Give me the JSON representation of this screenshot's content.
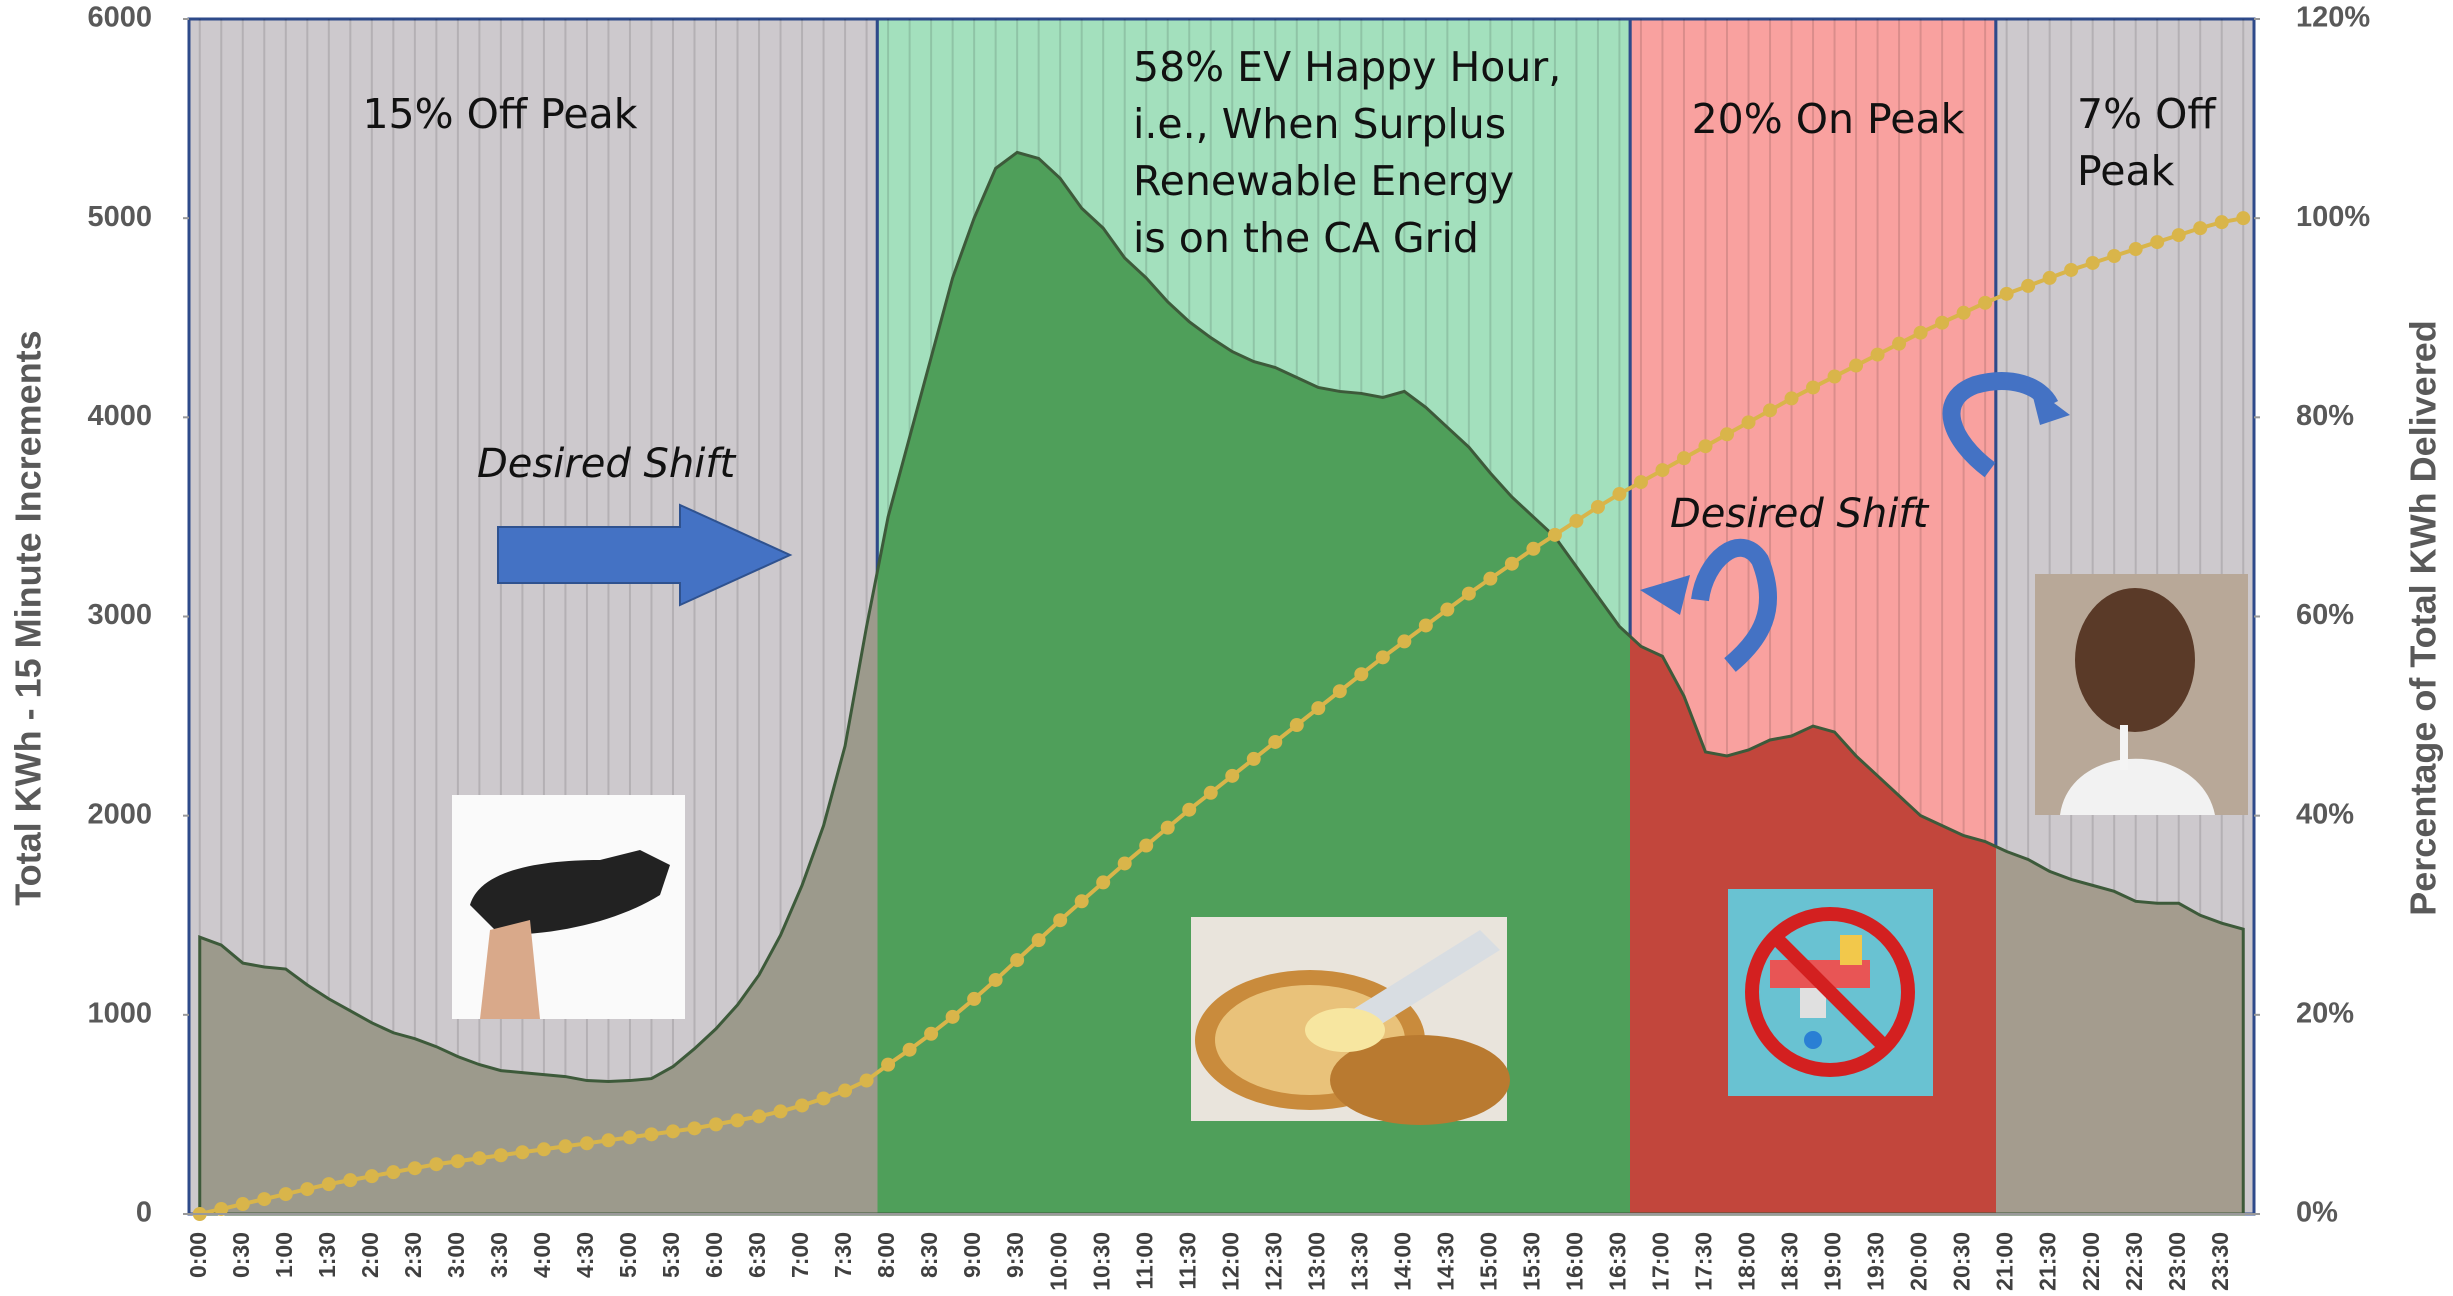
{
  "chart_data": {
    "type": "area",
    "y_axis_label": "Total KWh - 15 Minute Increments",
    "y2_axis_label": "Percentage of Total KWh Delivered",
    "categories": [
      "0:00",
      null,
      "0:30",
      null,
      "1:00",
      null,
      "1:30",
      null,
      "2:00",
      null,
      "2:30",
      null,
      "3:00",
      null,
      "3:30",
      null,
      "4:00",
      null,
      "4:30",
      null,
      "5:00",
      null,
      "5:30",
      null,
      "6:00",
      null,
      "6:30",
      null,
      "7:00",
      null,
      "7:30",
      null,
      "8:00",
      null,
      "8:30",
      null,
      "9:00",
      null,
      "9:30",
      null,
      "10:00",
      null,
      "10:30",
      null,
      "11:00",
      null,
      "11:30",
      null,
      "12:00",
      null,
      "12:30",
      null,
      "13:00",
      null,
      "13:30",
      null,
      "14:00",
      null,
      "14:30",
      null,
      "15:00",
      null,
      "15:30",
      null,
      "16:00",
      null,
      "16:30",
      null,
      "17:00",
      null,
      "17:30",
      null,
      "18:00",
      null,
      "18:30",
      null,
      "19:00",
      null,
      "19:30",
      null,
      "20:00",
      null,
      "20:30",
      null,
      "21:00",
      null,
      "21:30",
      null,
      "22:00",
      null,
      "22:30",
      null,
      "23:00",
      null,
      "23:30",
      null
    ],
    "series": [
      {
        "name": "Total KWh",
        "color": "#7a9a6a",
        "values": [
          1390,
          1350,
          1260,
          1240,
          1230,
          1150,
          1080,
          1020,
          960,
          910,
          880,
          840,
          790,
          750,
          720,
          710,
          700,
          690,
          670,
          665,
          670,
          680,
          740,
          830,
          930,
          1050,
          1200,
          1400,
          1650,
          1950,
          2350,
          2950,
          3500,
          3900,
          4300,
          4700,
          5000,
          5250,
          5330,
          5300,
          5200,
          5050,
          4950,
          4800,
          4700,
          4580,
          4480,
          4400,
          4330,
          4280,
          4250,
          4200,
          4150,
          4130,
          4120,
          4100,
          4130,
          4050,
          3950,
          3850,
          3720,
          3600,
          3500,
          3400,
          3250,
          3100,
          2950,
          2850,
          2800,
          2600,
          2320,
          2300,
          2330,
          2380,
          2400,
          2450,
          2420,
          2300,
          2200,
          2100,
          2000,
          1950,
          1900,
          1870,
          1820,
          1780,
          1720,
          1680,
          1650,
          1620,
          1570,
          1560,
          1560,
          1500,
          1460,
          1430
        ]
      },
      {
        "name": "Percentage of Total KWh Delivered",
        "color": "#d9b54a",
        "axis": "y2",
        "values": [
          0,
          0.5,
          1,
          1.5,
          2,
          2.5,
          3,
          3.4,
          3.8,
          4.2,
          4.6,
          5,
          5.3,
          5.6,
          5.9,
          6.2,
          6.5,
          6.8,
          7.1,
          7.4,
          7.7,
          8,
          8.3,
          8.6,
          9,
          9.4,
          9.8,
          10.3,
          10.9,
          11.6,
          12.4,
          13.4,
          15,
          16.5,
          18.1,
          19.8,
          21.6,
          23.5,
          25.5,
          27.5,
          29.5,
          31.4,
          33.3,
          35.2,
          37,
          38.8,
          40.6,
          42.3,
          44,
          45.7,
          47.4,
          49.1,
          50.8,
          52.5,
          54.2,
          55.9,
          57.5,
          59.1,
          60.7,
          62.3,
          63.8,
          65.3,
          66.8,
          68.2,
          69.6,
          71,
          72.3,
          73.5,
          74.7,
          75.9,
          77.1,
          78.3,
          79.5,
          80.7,
          81.9,
          83,
          84.1,
          85.2,
          86.3,
          87.4,
          88.5,
          89.5,
          90.5,
          91.5,
          92.4,
          93.2,
          94,
          94.8,
          95.5,
          96.2,
          96.9,
          97.6,
          98.3,
          99,
          99.6,
          100
        ]
      }
    ],
    "regions": [
      {
        "label": [
          "15% Off Peak"
        ],
        "color": "#cdc9cd",
        "fill": "#9c9a8c"
      },
      {
        "label": [
          "58% EV Happy Hour,",
          "i.e., When  Surplus",
          "Renewable Energy",
          "is on the CA Grid"
        ],
        "color": "#a3e0bd",
        "fill": "#4f9f5a"
      },
      {
        "label": [
          "20% On Peak"
        ],
        "color": "#f9a19f",
        "fill": "#c2463c"
      },
      {
        "label": [
          "7% Off",
          "Peak"
        ],
        "color": "#cdc9cd",
        "fill": "#a49c8e"
      }
    ],
    "annotations": [
      "Desired Shift",
      "Desired Shift"
    ],
    "ylim": [
      0,
      6000
    ],
    "yticks": [
      0,
      1000,
      2000,
      3000,
      4000,
      5000,
      6000
    ],
    "y2lim": [
      0,
      120
    ],
    "y2ticks": [
      {
        "value": 0,
        "label": "0%"
      },
      {
        "value": 20,
        "label": "20%"
      },
      {
        "value": 40,
        "label": "40%"
      },
      {
        "value": 60,
        "label": "60%"
      },
      {
        "value": 80,
        "label": "80%"
      },
      {
        "value": 100,
        "label": "100%"
      },
      {
        "value": 120,
        "label": "120%"
      }
    ]
  }
}
